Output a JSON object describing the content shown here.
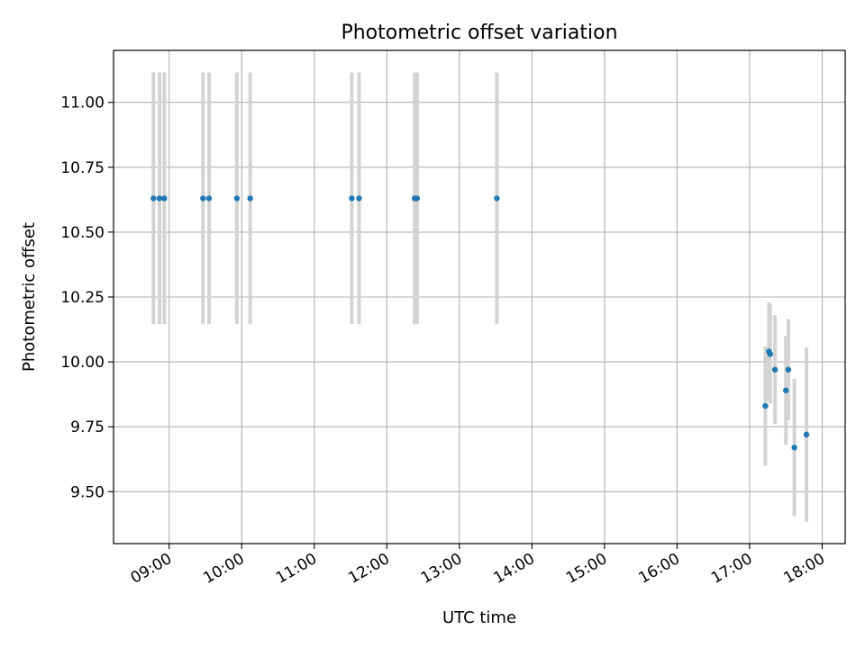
{
  "chart_data": {
    "type": "scatter",
    "title": "Photometric offset variation",
    "xlabel": "UTC time",
    "ylabel": "Photometric offset",
    "x_tick_labels": [
      "09:00",
      "10:00",
      "11:00",
      "12:00",
      "13:00",
      "14:00",
      "15:00",
      "16:00",
      "17:00",
      "18:00"
    ],
    "y_tick_labels": [
      "9.50",
      "9.75",
      "10.00",
      "10.25",
      "10.50",
      "10.75",
      "11.00"
    ],
    "y_ticks": [
      9.5,
      9.75,
      10.0,
      10.25,
      10.5,
      10.75,
      11.0
    ],
    "xlim": [
      "08:14",
      "18:19"
    ],
    "ylim": [
      9.3,
      11.2
    ],
    "grid": true,
    "marker_color": "#1f77b4",
    "errorbar_color": "#d3d3d3",
    "points": [
      {
        "x": "08:47",
        "y": 10.63,
        "yerr": 0.485
      },
      {
        "x": "08:52",
        "y": 10.63,
        "yerr": 0.485
      },
      {
        "x": "08:56",
        "y": 10.63,
        "yerr": 0.485
      },
      {
        "x": "09:28",
        "y": 10.63,
        "yerr": 0.485
      },
      {
        "x": "09:33",
        "y": 10.63,
        "yerr": 0.485
      },
      {
        "x": "09:56",
        "y": 10.63,
        "yerr": 0.485
      },
      {
        "x": "10:07",
        "y": 10.63,
        "yerr": 0.485
      },
      {
        "x": "11:31",
        "y": 10.63,
        "yerr": 0.485
      },
      {
        "x": "11:37",
        "y": 10.63,
        "yerr": 0.485
      },
      {
        "x": "12:23",
        "y": 10.63,
        "yerr": 0.485
      },
      {
        "x": "12:25",
        "y": 10.63,
        "yerr": 0.485
      },
      {
        "x": "13:31",
        "y": 10.63,
        "yerr": 0.485
      },
      {
        "x": "17:13",
        "y": 9.83,
        "yerr": 0.23
      },
      {
        "x": "17:16",
        "y": 10.04,
        "yerr": 0.19
      },
      {
        "x": "17:17",
        "y": 10.03,
        "yerr": 0.19
      },
      {
        "x": "17:21",
        "y": 9.97,
        "yerr": 0.21
      },
      {
        "x": "17:30",
        "y": 9.89,
        "yerr": 0.21
      },
      {
        "x": "17:32",
        "y": 9.97,
        "yerr": 0.195
      },
      {
        "x": "17:37",
        "y": 9.67,
        "yerr": 0.265
      },
      {
        "x": "17:47",
        "y": 9.72,
        "yerr": 0.335
      }
    ]
  }
}
